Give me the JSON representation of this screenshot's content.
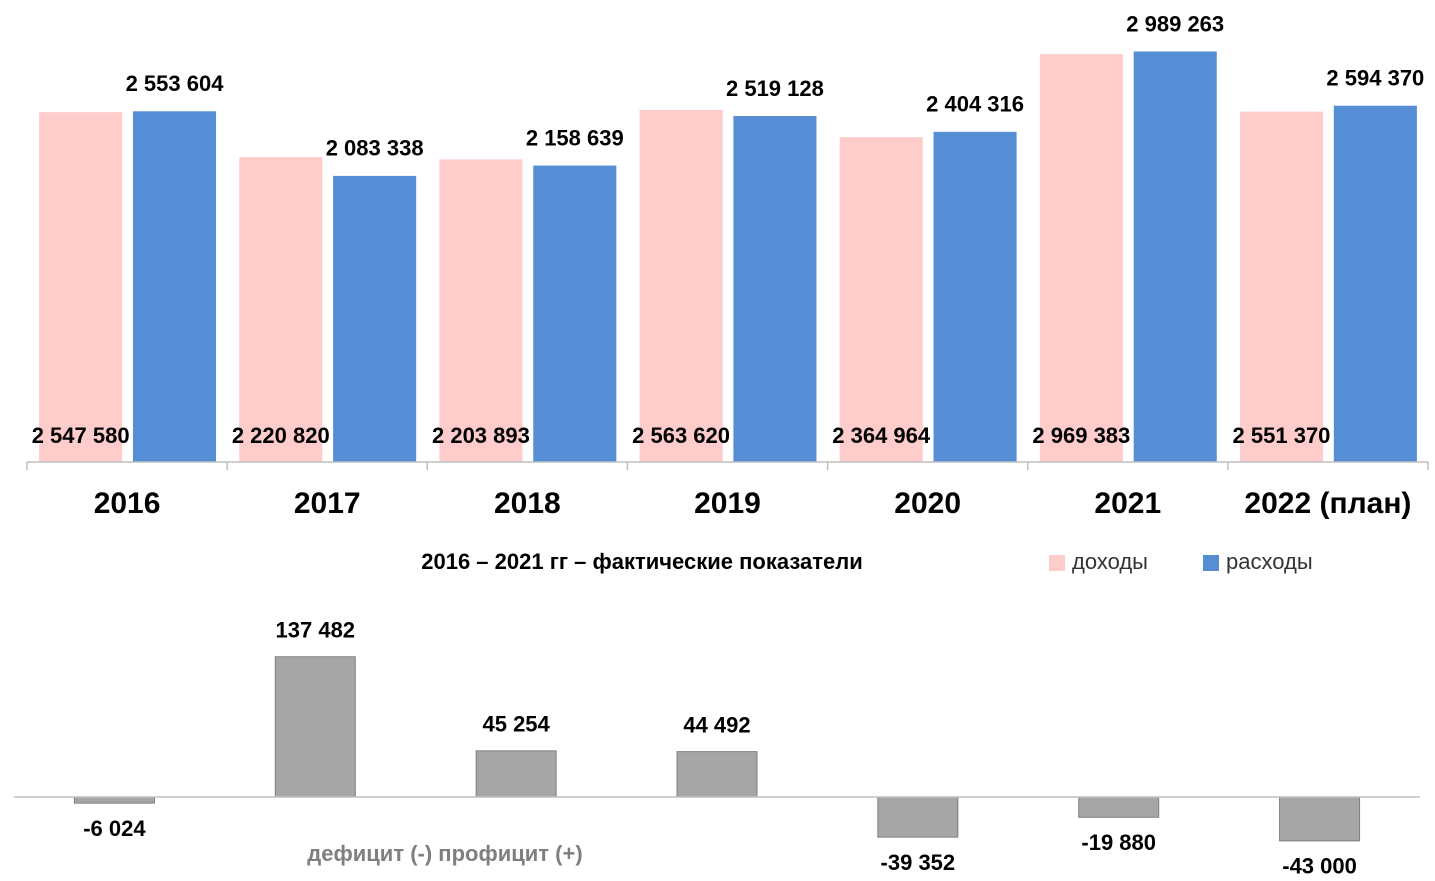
{
  "chart_data": [
    {
      "type": "bar",
      "categories": [
        "2016",
        "2017",
        "2018",
        "2019",
        "2020",
        "2021",
        "2022 (план)"
      ],
      "subtitle": "2016 – 2021 гг – фактические показатели",
      "ylim": [
        0,
        3000000
      ],
      "legend": "bottom-right",
      "series": [
        {
          "name": "доходы",
          "color": "#ffcccc",
          "values": [
            2547580,
            2220820,
            2203893,
            2563620,
            2364964,
            2969383,
            2551370
          ],
          "value_labels": [
            "2 547 580",
            "2 220 820",
            "2 203 893",
            "2 563 620",
            "2 364 964",
            "2 969 383",
            "2 551 370"
          ]
        },
        {
          "name": "расходы",
          "color": "#558ed5",
          "values": [
            2553604,
            2083338,
            2158639,
            2519128,
            2404316,
            2989263,
            2594370
          ],
          "value_labels": [
            "2 553 604",
            "2 083 338",
            "2 158 639",
            "2 519 128",
            "2 404 316",
            "2 989 263",
            "2 594 370"
          ]
        }
      ]
    },
    {
      "type": "bar",
      "annotation": "дефицит (-) профицит (+)",
      "ylim": [
        -50000,
        150000
      ],
      "color": "#a6a6a6",
      "values": [
        -6024,
        137482,
        45254,
        44492,
        -39352,
        -19880,
        -43000
      ],
      "value_labels": [
        "-6 024",
        "137 482",
        "45 254",
        "44 492",
        "-39 352",
        "-19 880",
        "-43 000"
      ]
    }
  ]
}
